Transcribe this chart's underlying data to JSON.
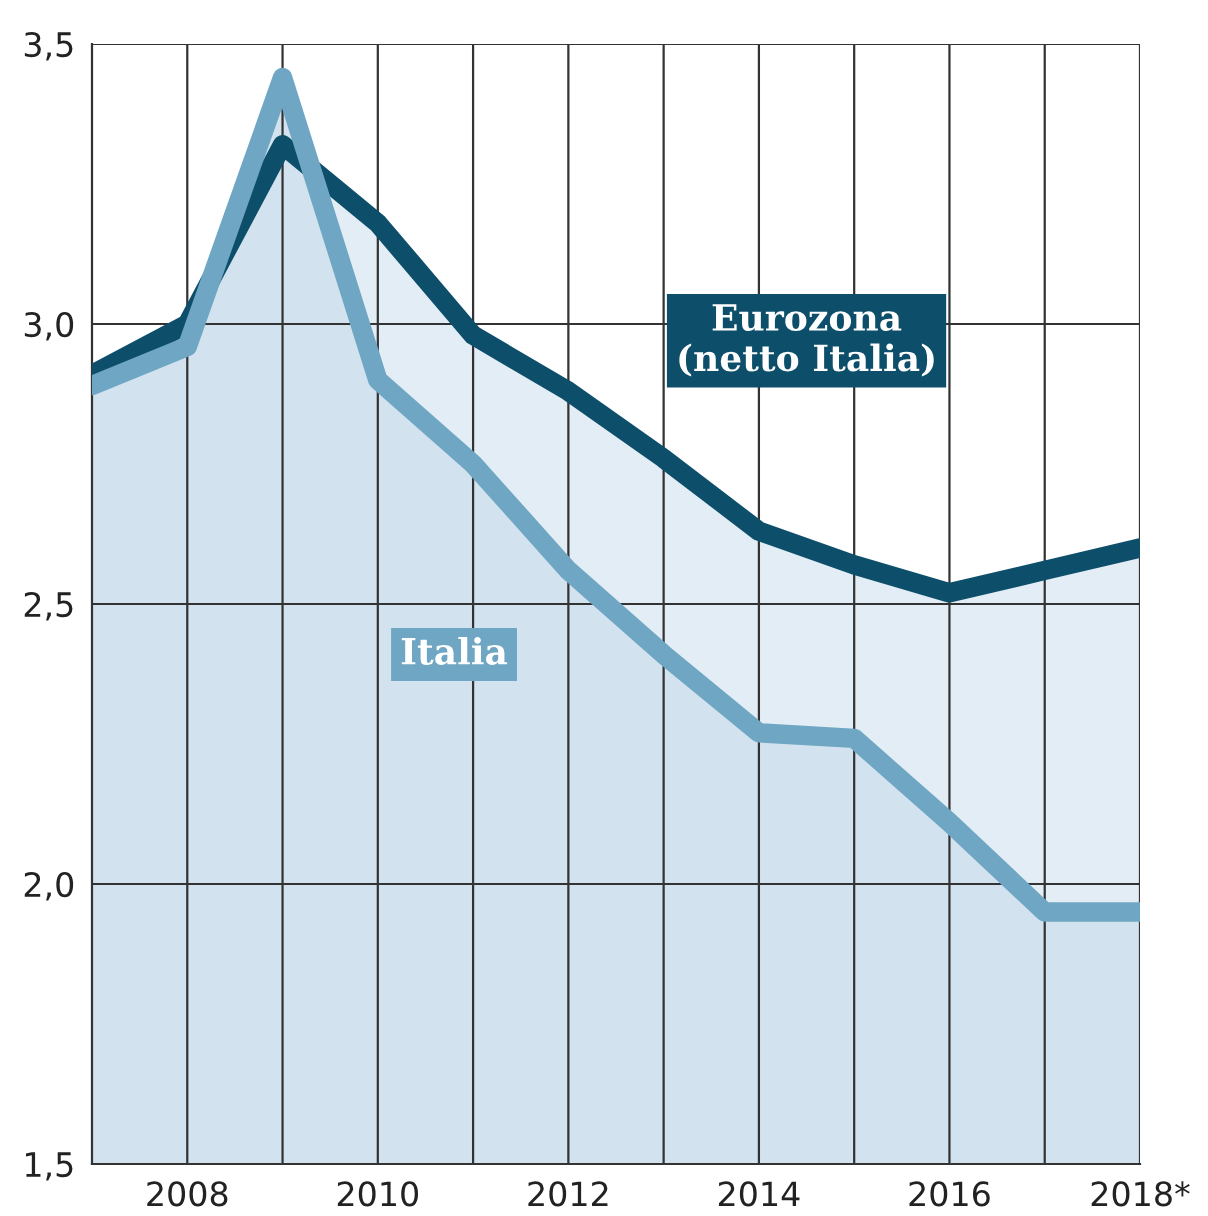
{
  "chart_data": {
    "type": "area",
    "x": [
      2007,
      2008,
      2009,
      2010,
      2011,
      2012,
      2013,
      2014,
      2015,
      2016,
      2017,
      2018
    ],
    "series": [
      {
        "name": "Eurozona\n(netto Italia)",
        "color": "#0d4f6b",
        "values": [
          2.91,
          3.0,
          3.32,
          3.18,
          2.98,
          2.88,
          2.76,
          2.63,
          2.57,
          2.52,
          2.56,
          2.6
        ]
      },
      {
        "name": "Italia",
        "color": "#6ea6c3",
        "values": [
          2.89,
          2.96,
          3.44,
          2.9,
          2.75,
          2.56,
          2.41,
          2.27,
          2.26,
          2.11,
          1.95,
          1.95
        ]
      }
    ],
    "xlim": [
      2007,
      2018
    ],
    "xticks": [
      {
        "value": 2008,
        "label": "2008"
      },
      {
        "value": 2009,
        "label": null
      },
      {
        "value": 2010,
        "label": "2010"
      },
      {
        "value": 2011,
        "label": null
      },
      {
        "value": 2012,
        "label": "2012"
      },
      {
        "value": 2013,
        "label": null
      },
      {
        "value": 2014,
        "label": "2014"
      },
      {
        "value": 2015,
        "label": null
      },
      {
        "value": 2016,
        "label": "2016"
      },
      {
        "value": 2017,
        "label": null
      },
      {
        "value": 2018,
        "label": "2018*"
      }
    ],
    "ylim": [
      1.5,
      3.5
    ],
    "yticks": [
      {
        "value": 1.5,
        "label": "1,5"
      },
      {
        "value": 2.0,
        "label": "2,0"
      },
      {
        "value": 2.5,
        "label": "2,5"
      },
      {
        "value": 3.0,
        "label": "3,0"
      },
      {
        "value": 3.5,
        "label": "3,5"
      }
    ],
    "grid": true,
    "line_style": "solid",
    "marker": "none"
  }
}
